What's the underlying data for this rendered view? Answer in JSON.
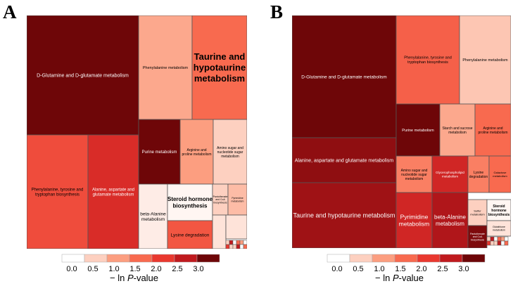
{
  "panel_labels": [
    "A",
    "B"
  ],
  "color_scale": [
    "#FFFFFF",
    "#FDD0C0",
    "#FC9E80",
    "#F86A4F",
    "#E9382F",
    "#C01A1E",
    "#6E0608"
  ],
  "chart_data": [
    {
      "type": "treemap",
      "panel": "A",
      "value_label": "− ln P-value",
      "tiles": [
        {
          "name": "D-Glutamine and D-glutamate metabolism",
          "value": 3.0
        },
        {
          "name": "Phenylalanine metabolism",
          "value": 0.9
        },
        {
          "name": "Taurine and hypotaurine metabolism",
          "value": 1.5
        },
        {
          "name": "Phenylalanine, tyrosine and tryptophan biosynthesis",
          "value": 1.8
        },
        {
          "name": "Alanine, aspartate and glutamate metabolism",
          "value": 2.2
        },
        {
          "name": "Purine metabolism",
          "value": 3.0
        },
        {
          "name": "Arginine and proline metabolism",
          "value": 1.0
        },
        {
          "name": "Amino sugar and nucleotide sugar metabolism",
          "value": 0.5
        },
        {
          "name": "beta-Alanine metabolism",
          "value": 0.2
        },
        {
          "name": "Steroid hormone biosynthesis",
          "value": 0.1
        },
        {
          "name": "Pantothenate and CoA biosynthesis",
          "value": 0.5
        },
        {
          "name": "Pyrimidine metabolism",
          "value": 0.7
        },
        {
          "name": "Lysine degradation",
          "value": 1.7
        },
        {
          "name": "Glutathione metabolism",
          "value": 0.3
        }
      ]
    },
    {
      "type": "treemap",
      "panel": "B",
      "value_label": "− ln P-value",
      "tiles": [
        {
          "name": "D-Glutamine and D-glutamate metabolism",
          "value": 3.0
        },
        {
          "name": "Phenylalanine, tyrosine and tryptophan biosynthesis",
          "value": 1.6
        },
        {
          "name": "Phenylalanine metabolism",
          "value": 0.6
        },
        {
          "name": "Alanine, aspartate and glutamate metabolism",
          "value": 2.8
        },
        {
          "name": "Purine metabolism",
          "value": 3.0
        },
        {
          "name": "Starch and sucrose metabolism",
          "value": 0.9
        },
        {
          "name": "Arginine and proline metabolism",
          "value": 1.5
        },
        {
          "name": "Taurine and hypotaurine metabolism",
          "value": 2.7
        },
        {
          "name": "Amino sugar and nucleotide sugar metabolism",
          "value": 1.3
        },
        {
          "name": "Glycerophospholipid metabolism",
          "value": 2.3
        },
        {
          "name": "Lysine degradation",
          "value": 1.3
        },
        {
          "name": "Galactose metabolism",
          "value": 1.5
        },
        {
          "name": "Pyrimidine metabolism",
          "value": 2.3
        },
        {
          "name": "beta-Alanine metabolism",
          "value": 2.6
        },
        {
          "name": "Sulfur metabolism",
          "value": 0.5
        },
        {
          "name": "Steroid hormone biosynthesis",
          "value": 0.1
        },
        {
          "name": "Pantothenate and CoA biosynthesis",
          "value": 2.9
        },
        {
          "name": "Glutathione metabolism",
          "value": 0.3
        }
      ]
    }
  ],
  "legend": {
    "ticks": [
      "0.0",
      "0.5",
      "1.0",
      "1.5",
      "2.0",
      "2.5",
      "3.0"
    ],
    "title_prefix": "− ln ",
    "title_italic": "P",
    "title_suffix": "-value"
  }
}
